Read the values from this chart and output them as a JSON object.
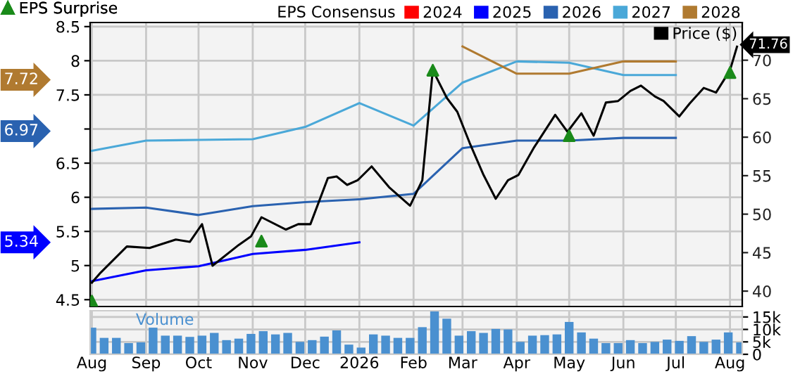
{
  "chart_data": [
    {
      "type": "line",
      "legend_title": "EPS Consensus",
      "legend": "top",
      "grid": true,
      "tick_labels": "y",
      "line_style": "solid",
      "xlim": [
        "2025-07-31",
        "2026-08-08"
      ],
      "xticks": [
        {
          "value": "2025-08-01",
          "label": null
        },
        {
          "value": "2025-09-01",
          "label": null
        },
        {
          "value": "2025-10-01",
          "label": null
        },
        {
          "value": "2025-11-01",
          "label": null
        },
        {
          "value": "2025-12-01",
          "label": null
        },
        {
          "value": "2026-01-01",
          "label": null
        },
        {
          "value": "2026-02-01",
          "label": null
        },
        {
          "value": "2026-03-01",
          "label": null
        },
        {
          "value": "2026-04-01",
          "label": null
        },
        {
          "value": "2026-05-01",
          "label": null
        },
        {
          "value": "2026-06-01",
          "label": null
        },
        {
          "value": "2026-07-01",
          "label": null
        },
        {
          "value": "2026-08-01",
          "label": null
        }
      ],
      "ylim": [
        4.4,
        8.56
      ],
      "yticks": [
        4.5,
        5,
        5.5,
        6,
        6.5,
        {
          "value": 7,
          "label": null
        },
        7.5,
        8,
        8.5
      ],
      "y2lim": [
        38,
        74.9
      ],
      "y2ticks": [
        40,
        45,
        50,
        55,
        60,
        65,
        70
      ],
      "annotations": [
        "7.72",
        "6.97",
        "5.34"
      ],
      "series": [
        {
          "name": "2024",
          "type": "line",
          "color": "#ff0000"
        },
        {
          "name": "2025",
          "type": "line",
          "color": "#0000ff",
          "x": [
            "2025-08-01",
            "2025-09-01",
            "2025-10-01",
            "2025-11-01",
            "2025-12-01",
            "2026-01-01"
          ],
          "values": [
            4.77,
            4.93,
            4.99,
            5.17,
            5.23,
            5.34
          ]
        },
        {
          "name": "2026",
          "type": "line",
          "color": "#2a62b0",
          "x": [
            "2025-08-01",
            "2025-09-01",
            "2025-10-01",
            "2025-11-01",
            "2025-12-01",
            "2026-01-01",
            "2026-02-01",
            "2026-03-01",
            "2026-04-01",
            "2026-05-01",
            "2026-06-01",
            "2026-07-01"
          ],
          "values": [
            5.83,
            5.85,
            5.74,
            5.87,
            5.93,
            5.97,
            6.05,
            6.72,
            6.83,
            6.83,
            6.87,
            6.87
          ]
        },
        {
          "name": "2027",
          "type": "line",
          "color": "#4aa8d8",
          "x": [
            "2025-08-01",
            "2025-09-01",
            "2025-10-01",
            "2025-11-01",
            "2025-12-01",
            "2026-01-01",
            "2026-02-01",
            "2026-03-01",
            "2026-04-01",
            "2026-05-01",
            "2026-06-01",
            "2026-07-01"
          ],
          "values": [
            6.68,
            6.83,
            6.84,
            6.85,
            7.03,
            7.38,
            7.05,
            7.68,
            7.99,
            7.97,
            7.79,
            7.79
          ]
        },
        {
          "name": "2028",
          "type": "line",
          "color": "#b07a30",
          "x": [
            "2026-03-01",
            "2026-04-01",
            "2026-05-01",
            "2026-06-01",
            "2026-07-01"
          ],
          "values": [
            8.21,
            7.81,
            7.81,
            7.99,
            7.99
          ]
        },
        {
          "name": "Price ($)",
          "type": "line",
          "axis": "y2",
          "color": "#000000",
          "x": [
            "2025-08-01",
            "2025-08-06",
            "2025-08-21",
            "2025-09-03",
            "2025-09-18",
            "2025-09-26",
            "2025-10-03",
            "2025-10-09",
            "2025-10-24",
            "2025-10-31",
            "2025-11-06",
            "2025-11-20",
            "2025-11-27",
            "2025-12-04",
            "2025-12-14",
            "2025-12-19",
            "2025-12-25",
            "2025-12-31",
            "2026-01-08",
            "2026-01-18",
            "2026-01-30",
            "2026-02-06",
            "2026-02-12",
            "2026-02-20",
            "2026-02-26",
            "2026-03-05",
            "2026-03-13",
            "2026-03-20",
            "2026-03-27",
            "2026-04-02",
            "2026-04-11",
            "2026-04-23",
            "2026-04-30",
            "2026-05-08",
            "2026-05-15",
            "2026-05-22",
            "2026-05-29",
            "2026-06-05",
            "2026-06-11",
            "2026-06-19",
            "2026-06-24",
            "2026-07-03",
            "2026-07-09",
            "2026-07-17",
            "2026-07-24",
            "2026-08-01",
            "2026-08-05"
          ],
          "values": [
            41.1,
            42.4,
            45.8,
            45.6,
            46.7,
            46.4,
            48.7,
            43.3,
            46.0,
            47.1,
            49.6,
            48.0,
            48.7,
            48.7,
            54.7,
            54.9,
            53.8,
            54.4,
            56.2,
            53.5,
            51.1,
            54.4,
            68.7,
            65.1,
            63.3,
            59.3,
            55.1,
            52.0,
            54.4,
            55.1,
            58.7,
            62.9,
            60.7,
            63.1,
            60.2,
            64.5,
            64.7,
            66.0,
            66.7,
            65.3,
            64.7,
            62.7,
            64.4,
            66.4,
            65.8,
            68.7,
            71.76
          ],
          "value_labels": [
            null,
            null,
            null,
            null,
            null,
            null,
            null,
            null,
            null,
            null,
            null,
            null,
            null,
            null,
            null,
            null,
            null,
            null,
            null,
            null,
            null,
            null,
            null,
            null,
            null,
            null,
            null,
            null,
            null,
            null,
            null,
            null,
            null,
            null,
            null,
            null,
            null,
            null,
            null,
            null,
            null,
            null,
            null,
            null,
            null,
            null,
            "71.76"
          ]
        },
        {
          "name": "EPS Surprise",
          "type": "scatter",
          "axis": "y2",
          "color": "#1a8a1a",
          "marker": "triangle",
          "x": [
            "2025-08-01",
            "2025-11-06",
            "2026-02-12",
            "2026-05-01",
            "2026-08-01"
          ],
          "values": [
            38.7,
            46.5,
            68.7,
            60.2,
            68.4
          ]
        }
      ]
    },
    {
      "type": "bar",
      "legend": false,
      "grid": true,
      "xlim": [
        "2025-07-31",
        "2026-08-08"
      ],
      "xticks": [
        {
          "value": "2025-08-01",
          "label": "Aug"
        },
        {
          "value": "2025-09-01",
          "label": "Sep"
        },
        {
          "value": "2025-10-01",
          "label": "Oct"
        },
        {
          "value": "2025-11-01",
          "label": "Nov"
        },
        {
          "value": "2025-12-01",
          "label": "Dec"
        },
        {
          "value": "2026-01-01",
          "label": "2026"
        },
        {
          "value": "2026-02-01",
          "label": "Feb"
        },
        {
          "value": "2026-03-01",
          "label": "Mar"
        },
        {
          "value": "2026-04-01",
          "label": "Apr"
        },
        {
          "value": "2026-05-01",
          "label": "May"
        },
        {
          "value": "2026-06-01",
          "label": "Jun"
        },
        {
          "value": "2026-07-01",
          "label": "Jul"
        },
        {
          "value": "2026-08-01",
          "label": "Aug"
        }
      ],
      "ylim": [
        0,
        17.5
      ],
      "yticks": [
        0,
        {
          "value": 5,
          "label": "5k"
        },
        {
          "value": 10,
          "label": "10k"
        },
        {
          "value": 15,
          "label": "15k"
        }
      ],
      "x": [
        "2025-08-01",
        "2025-08-08",
        "2025-08-15",
        "2025-08-22",
        "2025-08-29",
        "2025-09-05",
        "2025-09-12",
        "2025-09-19",
        "2025-09-26",
        "2025-10-03",
        "2025-10-10",
        "2025-10-17",
        "2025-10-24",
        "2025-10-31",
        "2025-11-07",
        "2025-11-14",
        "2025-11-21",
        "2025-11-28",
        "2025-12-05",
        "2025-12-12",
        "2025-12-19",
        "2025-12-26",
        "2026-01-02",
        "2026-01-09",
        "2026-01-16",
        "2026-01-23",
        "2026-01-30",
        "2026-02-06",
        "2026-02-13",
        "2026-02-20",
        "2026-02-27",
        "2026-03-06",
        "2026-03-13",
        "2026-03-20",
        "2026-03-27",
        "2026-04-03",
        "2026-04-10",
        "2026-04-17",
        "2026-04-24",
        "2026-05-01",
        "2026-05-08",
        "2026-05-15",
        "2026-05-22",
        "2026-05-29",
        "2026-06-05",
        "2026-06-12",
        "2026-06-19",
        "2026-06-26",
        "2026-07-03",
        "2026-07-10",
        "2026-07-17",
        "2026-07-24",
        "2026-07-31",
        "2026-08-07"
      ],
      "series": [
        {
          "name": "Volume",
          "color": "#4a90d0",
          "values": [
            10.7,
            6.6,
            6.6,
            4.5,
            4.8,
            10.7,
            7.5,
            7.5,
            7.0,
            7.5,
            8.6,
            5.7,
            6.3,
            8.2,
            9.3,
            8.0,
            8.6,
            5.0,
            5.7,
            7.1,
            9.6,
            3.9,
            2.7,
            8.0,
            7.5,
            6.6,
            6.6,
            10.9,
            17.5,
            14.3,
            7.5,
            9.3,
            8.6,
            10.2,
            10.0,
            5.0,
            7.5,
            7.7,
            8.0,
            13.0,
            8.8,
            6.3,
            4.5,
            4.5,
            5.7,
            4.5,
            5.0,
            5.9,
            5.4,
            7.3,
            5.0,
            5.9,
            8.8,
            4.8
          ]
        }
      ]
    }
  ]
}
